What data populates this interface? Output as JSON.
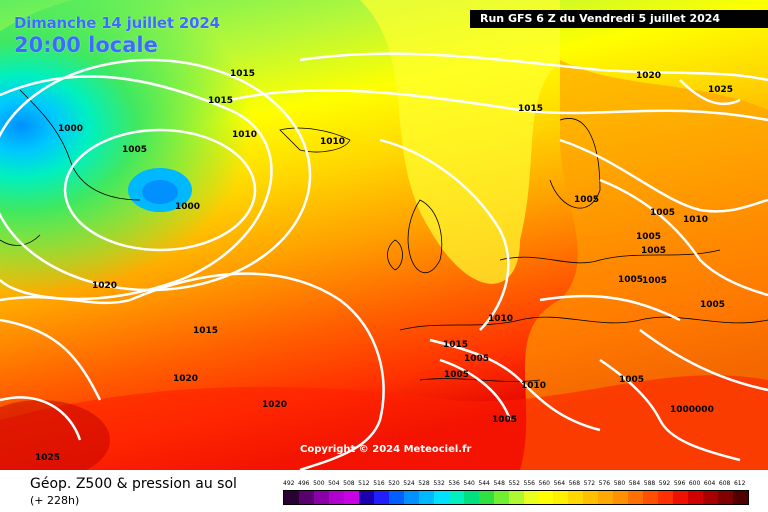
{
  "header": {
    "date": "Dimanche 14 juillet 2024",
    "time": "20:00 locale",
    "run": "Run GFS 6 Z du Vendredi 5 juillet 2024"
  },
  "copyright": "Copyright © 2024 Meteociel.fr",
  "legend": {
    "title": "Géop. Z500 & pression au sol",
    "subtitle": "(+ 228h)",
    "levels": [
      "492",
      "496",
      "500",
      "504",
      "508",
      "512",
      "516",
      "520",
      "524",
      "528",
      "532",
      "536",
      "540",
      "544",
      "548",
      "552",
      "556",
      "560",
      "564",
      "568",
      "572",
      "576",
      "580",
      "584",
      "588",
      "592",
      "596",
      "600",
      "604",
      "608",
      "612"
    ],
    "colors": [
      "#2b0033",
      "#5a006e",
      "#8a00a8",
      "#b000d0",
      "#c800e6",
      "#1c00b0",
      "#2020ff",
      "#0060ff",
      "#0090ff",
      "#00b8ff",
      "#00e0ff",
      "#00f0c0",
      "#00e080",
      "#30e040",
      "#70f030",
      "#b0f830",
      "#e8ff20",
      "#ffff00",
      "#fff000",
      "#ffd800",
      "#ffc000",
      "#ffa800",
      "#ff9000",
      "#ff7000",
      "#ff5000",
      "#ff3000",
      "#f01000",
      "#d00000",
      "#a80000",
      "#800000",
      "#500000"
    ]
  },
  "isobar_labels": [
    "1015",
    "1015",
    "1010",
    "1005",
    "1000",
    "1000",
    "1010",
    "1020",
    "1015",
    "1020",
    "1020",
    "1025",
    "1015",
    "1020",
    "1025",
    "1005",
    "1005",
    "1010",
    "1005",
    "1005",
    "1005",
    "1005",
    "1010",
    "1015",
    "1005",
    "1005",
    "1010",
    "1005",
    "1005",
    "1000000",
    "1005"
  ],
  "colors": {
    "date_text": "#3a6cff",
    "isobar_line": "#ffffff"
  }
}
